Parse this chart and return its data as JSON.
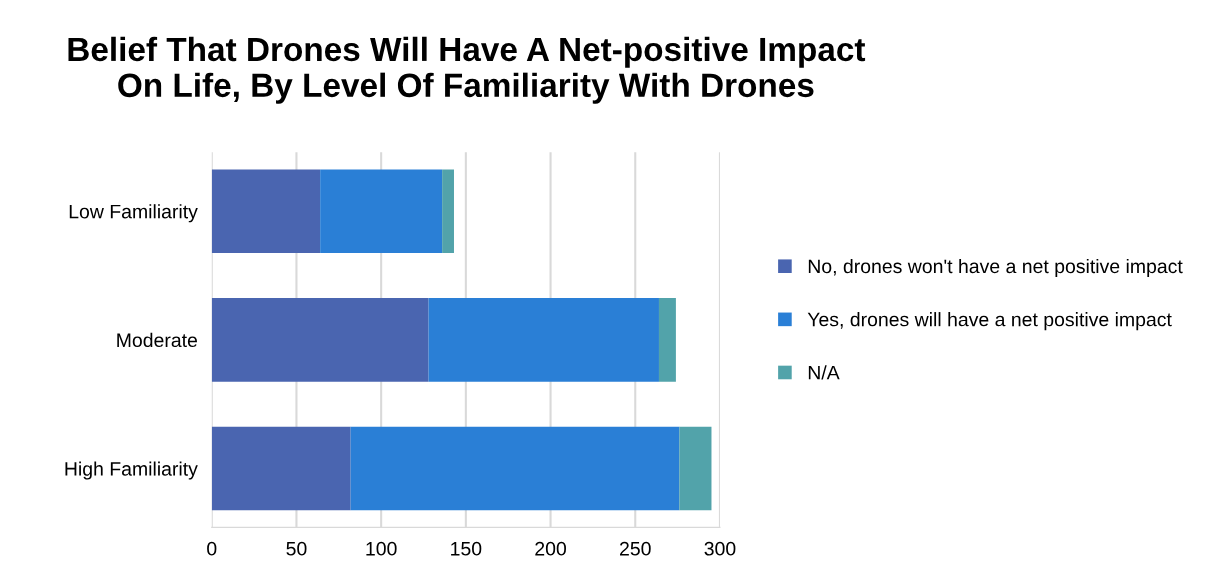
{
  "chart_data": {
    "type": "bar",
    "orientation": "horizontal",
    "stacked": true,
    "title": "Belief That Drones Will Have A Net-positive Impact\nOn Life, By Level Of Familiarity With Drones",
    "categories": [
      "Low Familiarity",
      "Moderate",
      "High Familiarity"
    ],
    "series": [
      {
        "name": "No, drones won't have a net positive impact",
        "color": "#4a65b0",
        "values": [
          64,
          128,
          82
        ]
      },
      {
        "name": "Yes, drones will have a net positive impact",
        "color": "#2a7fd6",
        "values": [
          72,
          136,
          194
        ]
      },
      {
        "name": "N/A",
        "color": "#52a3aa",
        "values": [
          7,
          10,
          19
        ]
      }
    ],
    "xlim": [
      0,
      300
    ],
    "xticks": [
      0,
      50,
      100,
      150,
      200,
      250,
      300
    ],
    "grid": "x",
    "legend": "right"
  }
}
